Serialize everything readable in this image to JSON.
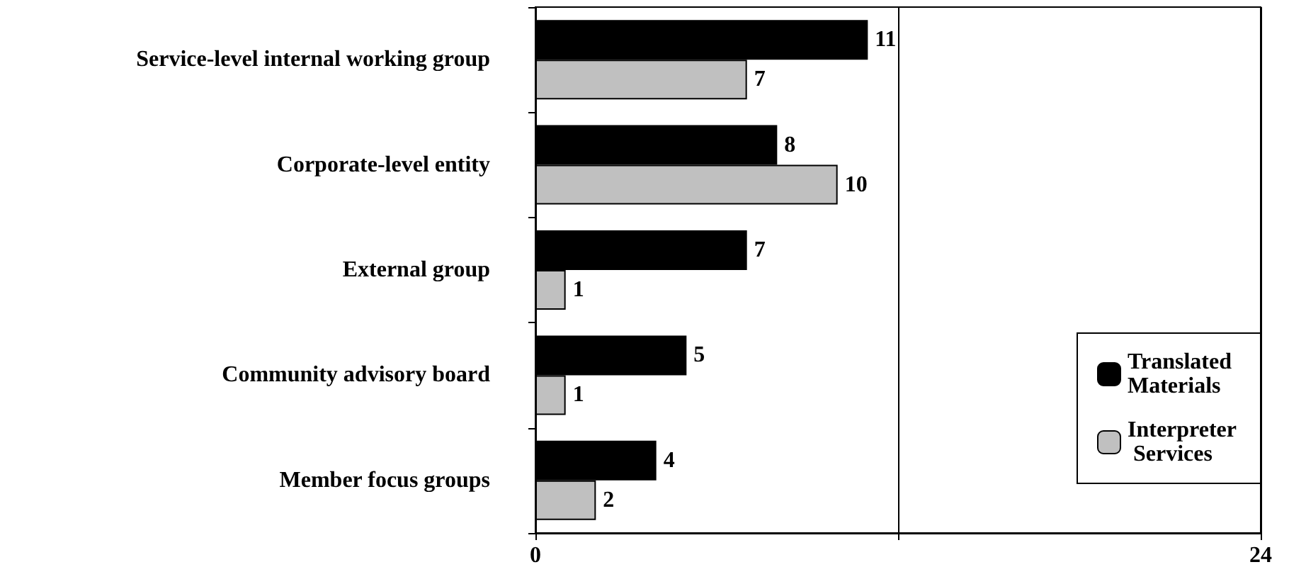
{
  "chart_data": {
    "type": "bar",
    "orientation": "horizontal",
    "categories": [
      "Service-level internal working group",
      "Corporate-level entity",
      "External group",
      "Community advisory board",
      "Member focus groups"
    ],
    "series": [
      {
        "name": "Translated Materials",
        "color": "#000000",
        "values": [
          11,
          8,
          7,
          5,
          4
        ]
      },
      {
        "name": "Interpreter Services",
        "color": "#c0c0c0",
        "values": [
          7,
          10,
          1,
          1,
          2
        ]
      }
    ],
    "xlim": [
      0,
      24
    ],
    "xticks": [
      0,
      {
        "value": 12,
        "label": null
      },
      24
    ],
    "grid": "x",
    "legend": "right",
    "data_labels": true
  }
}
